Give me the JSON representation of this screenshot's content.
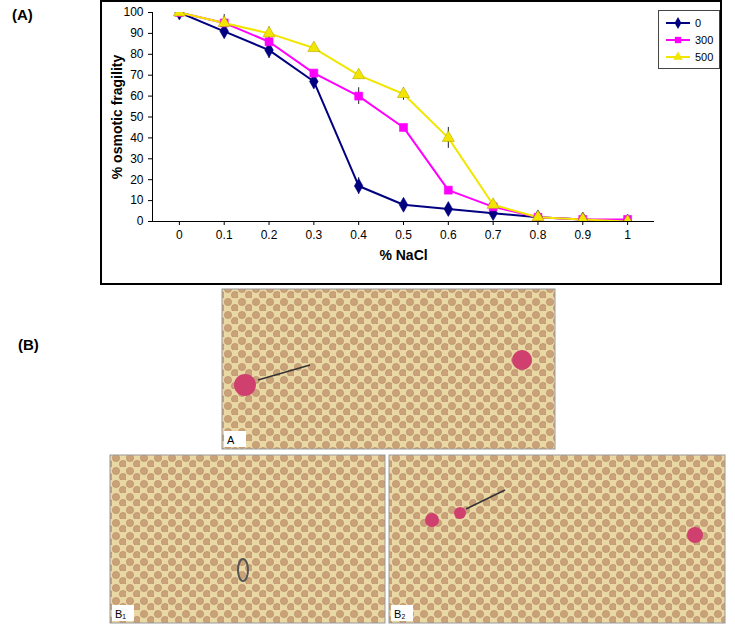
{
  "chart_data": {
    "type": "line",
    "x_label": "% NaCl",
    "y_label": "% osmotic fragility",
    "x": [
      0,
      0.1,
      0.2,
      0.3,
      0.4,
      0.5,
      0.6,
      0.7,
      0.8,
      0.9,
      1
    ],
    "series": [
      {
        "name": "0",
        "color": "#000080",
        "marker": "diamond",
        "values": [
          100,
          91,
          82,
          67,
          17,
          8,
          6,
          4,
          2,
          1,
          0
        ],
        "errors": [
          0,
          1,
          4,
          1,
          4,
          0.5,
          0,
          1,
          0,
          0,
          0
        ]
      },
      {
        "name": "300",
        "color": "#ff00ff",
        "marker": "square",
        "values": [
          100,
          95,
          86,
          71,
          60,
          45,
          15,
          7,
          2,
          1,
          1
        ],
        "errors": [
          0,
          4,
          3,
          0,
          4,
          0,
          0,
          0,
          0,
          0,
          0
        ]
      },
      {
        "name": "500",
        "color": "#f2e600",
        "marker": "triangle",
        "values": [
          100,
          95,
          90,
          83,
          70,
          61,
          40,
          8,
          2,
          1,
          0
        ],
        "errors": [
          0,
          3,
          3,
          1,
          2,
          3,
          5,
          2,
          0,
          0,
          0
        ]
      }
    ],
    "xlim": [
      -0.06,
      1.06
    ],
    "xticks": [
      0,
      0.1,
      0.2,
      0.3,
      0.4,
      0.5,
      0.6,
      0.7,
      0.8,
      0.9,
      1
    ],
    "ylim": [
      0,
      100
    ],
    "yticks": [
      0,
      10,
      20,
      30,
      40,
      50,
      60,
      70,
      80,
      90,
      100
    ],
    "grid": false,
    "legend": "top-right"
  },
  "figure": {
    "panels": [
      {
        "label": "(A)"
      },
      {
        "label": "(B)",
        "images": [
          "A",
          "B₁",
          "B₂"
        ]
      }
    ]
  }
}
